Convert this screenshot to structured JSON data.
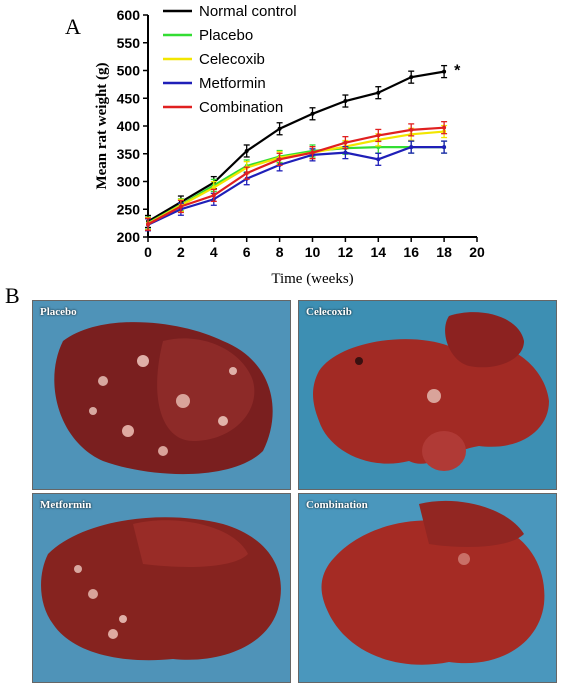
{
  "panels": {
    "a": "A",
    "b": "B"
  },
  "chart_data": {
    "type": "line",
    "xlabel": "Time (weeks)",
    "ylabel": "Mean rat weight (g)",
    "xlim": [
      0,
      20
    ],
    "ylim": [
      200,
      600
    ],
    "xticks": [
      0,
      2,
      4,
      6,
      8,
      10,
      12,
      14,
      16,
      18,
      20
    ],
    "yticks": [
      200,
      250,
      300,
      350,
      400,
      450,
      500,
      550,
      600
    ],
    "legend_position": "top-left",
    "grid": false,
    "annotation": "*",
    "x": [
      0,
      2,
      4,
      6,
      8,
      10,
      12,
      14,
      16,
      18
    ],
    "series": [
      {
        "name": "Normal control",
        "color": "#000000",
        "values": [
          228,
          263,
          298,
          355,
          395,
          422,
          445,
          460,
          488,
          498
        ]
      },
      {
        "name": "Placebo",
        "color": "#33dd33",
        "values": [
          225,
          258,
          293,
          328,
          345,
          355,
          360,
          362,
          362,
          362
        ]
      },
      {
        "name": "Celecoxib",
        "color": "#f2e600",
        "values": [
          224,
          257,
          289,
          325,
          343,
          352,
          363,
          375,
          385,
          390
        ]
      },
      {
        "name": "Metformin",
        "color": "#1f1fb8",
        "values": [
          222,
          250,
          268,
          305,
          330,
          348,
          352,
          340,
          362,
          362
        ]
      },
      {
        "name": "Combination",
        "color": "#e02020",
        "values": [
          223,
          255,
          275,
          315,
          340,
          352,
          370,
          383,
          393,
          397
        ]
      }
    ]
  },
  "photos": [
    {
      "label": "Placebo"
    },
    {
      "label": "Celecoxib"
    },
    {
      "label": "Metformin"
    },
    {
      "label": "Combination"
    }
  ]
}
